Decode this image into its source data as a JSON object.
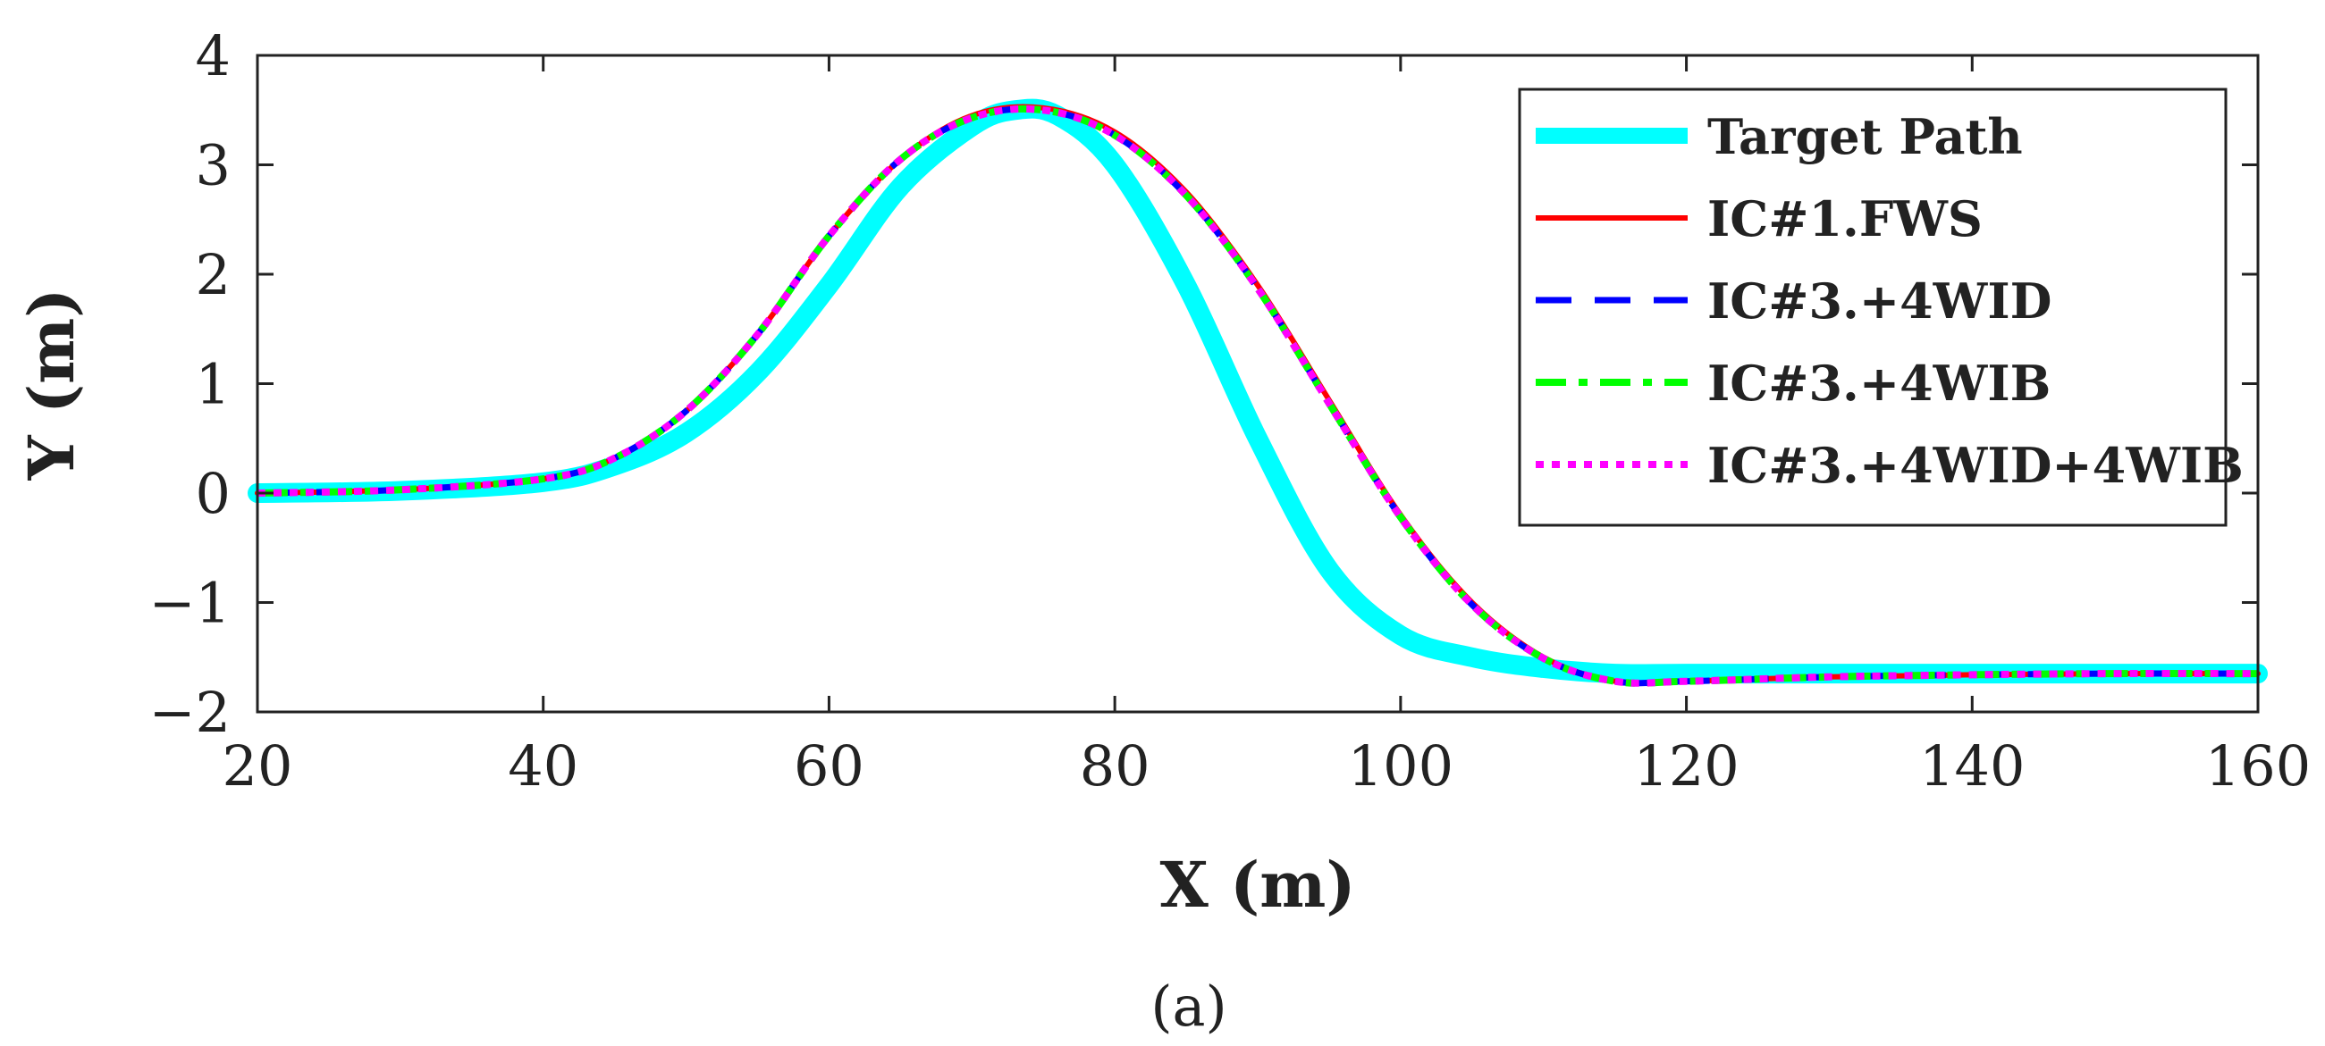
{
  "chart_data": {
    "type": "line",
    "title": "",
    "xlabel": "X (m)",
    "ylabel": "Y (m)",
    "xlim": [
      20,
      160
    ],
    "ylim": [
      -2,
      4
    ],
    "xticks": [
      20,
      40,
      60,
      80,
      100,
      120,
      140,
      160
    ],
    "yticks": [
      -2,
      -1,
      0,
      1,
      2,
      3,
      4
    ],
    "xtick_labels": [
      "20",
      "40",
      "60",
      "80",
      "100",
      "120",
      "140",
      "160"
    ],
    "ytick_labels": [
      "−2",
      "−1",
      "0",
      "1",
      "2",
      "3",
      "4"
    ],
    "grid": false,
    "legend_position": "top-right",
    "panel_label": "(a)",
    "series": [
      {
        "name": "Target Path",
        "color": "#00FFFF",
        "style": "solid",
        "x": [
          20,
          30,
          40,
          45,
          50,
          55,
          60,
          65,
          70,
          73,
          76,
          80,
          85,
          90,
          95,
          100,
          105,
          110,
          115,
          120,
          130,
          140,
          150,
          160
        ],
        "y": [
          0,
          0.02,
          0.1,
          0.25,
          0.55,
          1.1,
          1.9,
          2.8,
          3.35,
          3.5,
          3.45,
          3.0,
          1.9,
          0.5,
          -0.7,
          -1.3,
          -1.5,
          -1.6,
          -1.65,
          -1.65,
          -1.65,
          -1.65,
          -1.65,
          -1.65
        ]
      },
      {
        "name": "IC#1.FWS",
        "color": "#FF0000",
        "style": "solid",
        "x": [
          20,
          30,
          40,
          45,
          50,
          55,
          60,
          65,
          70,
          75,
          80,
          85,
          90,
          95,
          100,
          105,
          110,
          115,
          120,
          130,
          140,
          150,
          160
        ],
        "y": [
          0,
          0.03,
          0.13,
          0.32,
          0.75,
          1.45,
          2.35,
          3.05,
          3.45,
          3.52,
          3.3,
          2.75,
          1.9,
          0.85,
          -0.2,
          -1.0,
          -1.5,
          -1.72,
          -1.72,
          -1.68,
          -1.66,
          -1.65,
          -1.65
        ]
      },
      {
        "name": "IC#3.+4WID",
        "color": "#0000FF",
        "style": "dashed",
        "x": [
          20,
          30,
          40,
          45,
          50,
          55,
          60,
          65,
          70,
          75,
          80,
          85,
          90,
          95,
          100,
          105,
          110,
          115,
          120,
          130,
          140,
          150,
          160
        ],
        "y": [
          0,
          0.03,
          0.13,
          0.32,
          0.75,
          1.45,
          2.35,
          3.05,
          3.43,
          3.5,
          3.27,
          2.72,
          1.87,
          0.82,
          -0.22,
          -1.02,
          -1.51,
          -1.72,
          -1.72,
          -1.68,
          -1.66,
          -1.65,
          -1.65
        ]
      },
      {
        "name": "IC#3.+4WIB",
        "color": "#00FF00",
        "style": "dashdot",
        "x": [
          20,
          30,
          40,
          45,
          50,
          55,
          60,
          65,
          70,
          75,
          80,
          85,
          90,
          95,
          100,
          105,
          110,
          115,
          120,
          130,
          140,
          150,
          160
        ],
        "y": [
          0,
          0.03,
          0.13,
          0.32,
          0.75,
          1.45,
          2.35,
          3.05,
          3.43,
          3.5,
          3.27,
          2.72,
          1.87,
          0.82,
          -0.22,
          -1.02,
          -1.51,
          -1.72,
          -1.72,
          -1.68,
          -1.66,
          -1.65,
          -1.65
        ]
      },
      {
        "name": "IC#3.+4WID+4WIB",
        "color": "#FF00FF",
        "style": "dotted",
        "x": [
          20,
          30,
          40,
          45,
          50,
          55,
          60,
          65,
          70,
          75,
          80,
          85,
          90,
          95,
          100,
          105,
          110,
          115,
          120,
          130,
          140,
          150,
          160
        ],
        "y": [
          0,
          0.03,
          0.13,
          0.32,
          0.75,
          1.45,
          2.35,
          3.05,
          3.43,
          3.5,
          3.27,
          2.72,
          1.87,
          0.82,
          -0.22,
          -1.02,
          -1.51,
          -1.72,
          -1.72,
          -1.68,
          -1.66,
          -1.65,
          -1.65
        ]
      }
    ]
  }
}
